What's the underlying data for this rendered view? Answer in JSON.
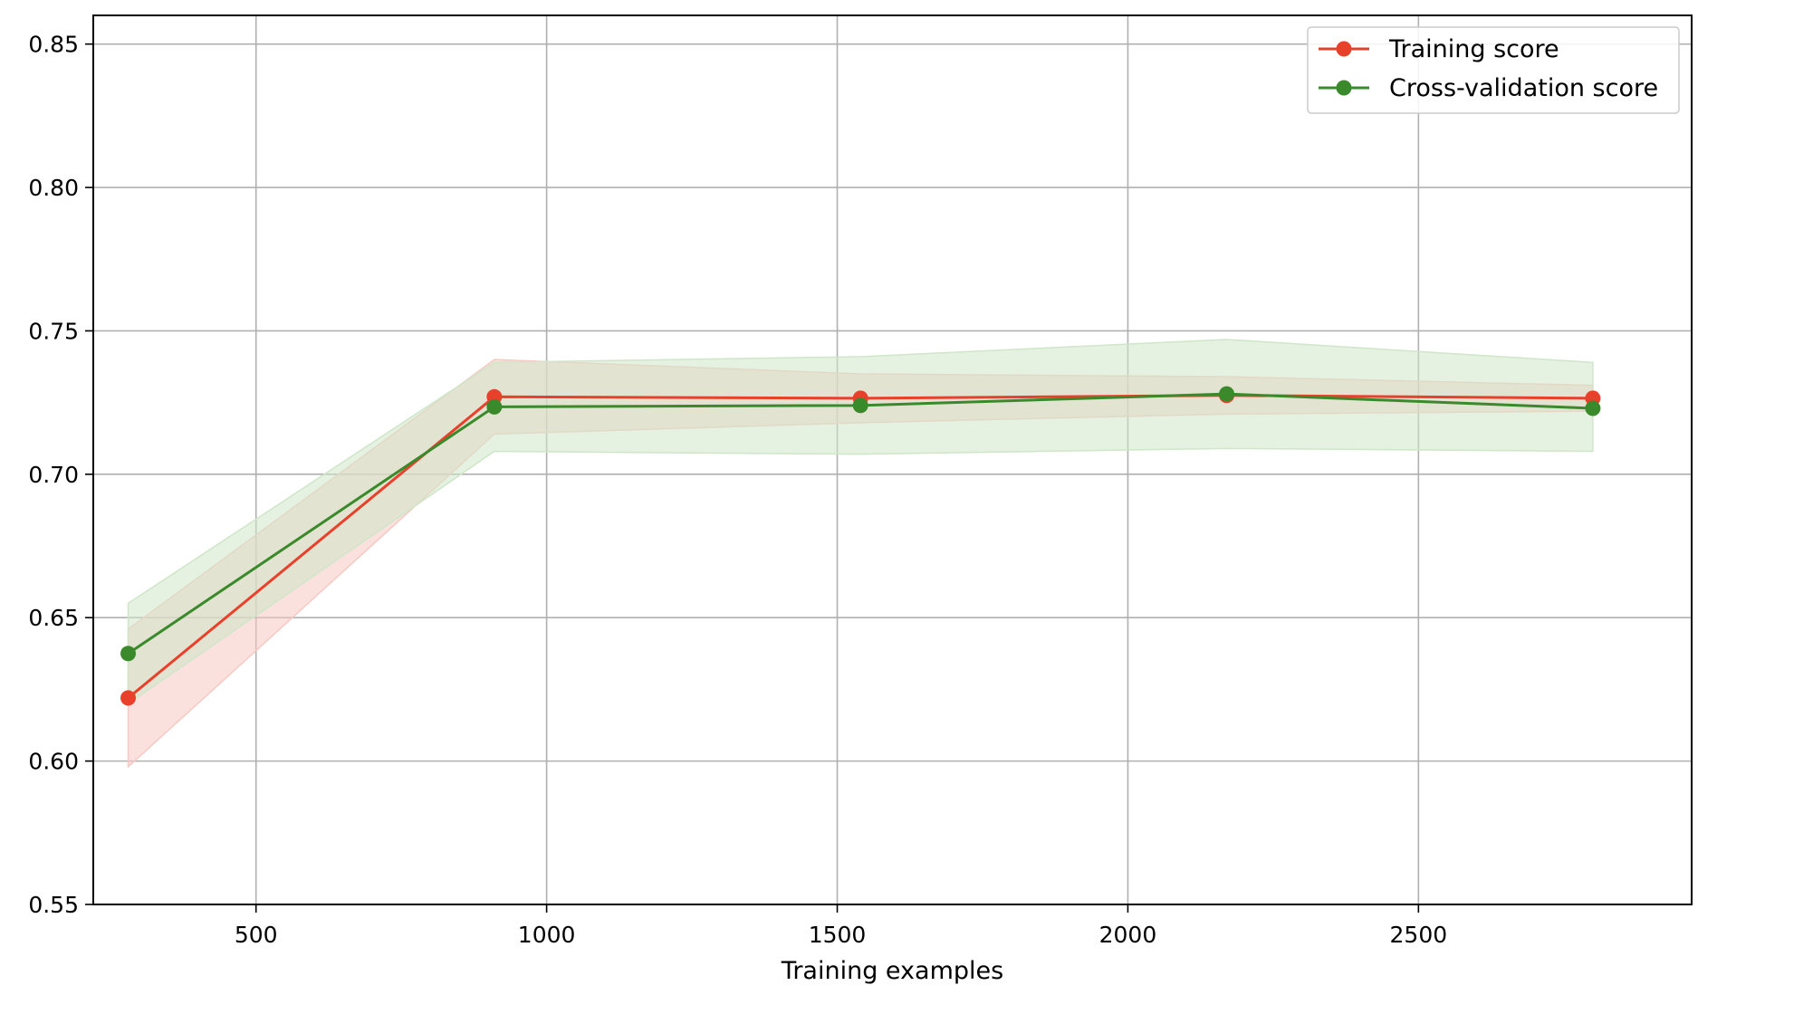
{
  "chart_data": {
    "type": "line",
    "title": "",
    "xlabel": "Training examples",
    "ylabel": "",
    "xlim": [
      220,
      2970
    ],
    "ylim": [
      0.55,
      0.86
    ],
    "xticks": [
      500,
      1000,
      1500,
      2000,
      2500
    ],
    "yticks": [
      0.55,
      0.6,
      0.65,
      0.7,
      0.75,
      0.8,
      0.85
    ],
    "xtick_labels": [
      "500",
      "1000",
      "1500",
      "2000",
      "2500"
    ],
    "ytick_labels": [
      "0.55",
      "0.60",
      "0.65",
      "0.70",
      "0.75",
      "0.80",
      "0.85"
    ],
    "grid": true,
    "legend_position": "top-right",
    "x": [
      280,
      910,
      1540,
      2170,
      2800
    ],
    "series": [
      {
        "name": "Training score",
        "color": "#e8412b",
        "band_color": "#f7c9c2",
        "values": [
          0.622,
          0.727,
          0.7265,
          0.7275,
          0.7265
        ],
        "lower": [
          0.598,
          0.714,
          0.718,
          0.721,
          0.722
        ],
        "upper": [
          0.646,
          0.74,
          0.735,
          0.734,
          0.731
        ]
      },
      {
        "name": "Cross-validation score",
        "color": "#3a8a2c",
        "band_color": "#cfe6c8",
        "values": [
          0.6375,
          0.7235,
          0.724,
          0.728,
          0.723
        ],
        "lower": [
          0.62,
          0.708,
          0.707,
          0.709,
          0.708
        ],
        "upper": [
          0.655,
          0.739,
          0.741,
          0.747,
          0.739
        ]
      }
    ]
  }
}
